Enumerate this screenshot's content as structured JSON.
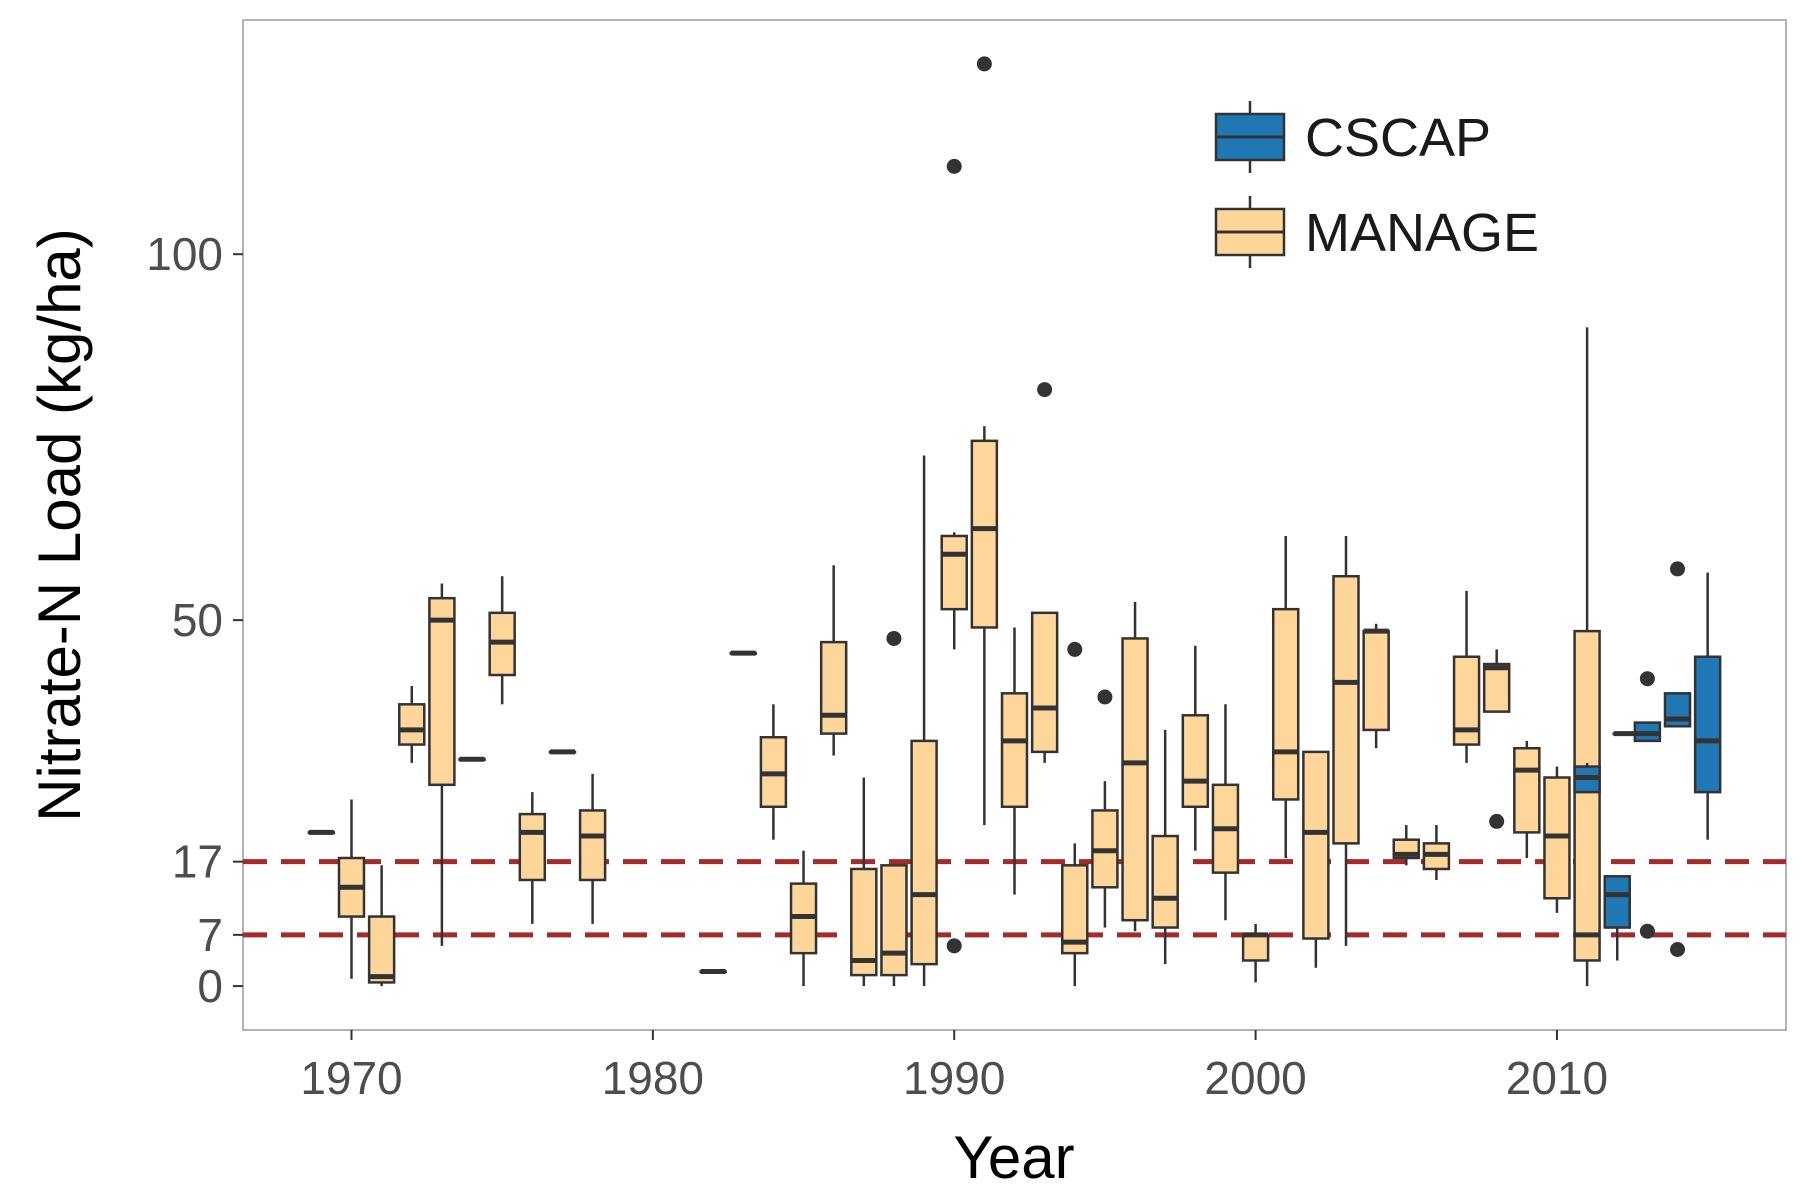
{
  "chart_data": {
    "type": "boxplot",
    "xlabel": "Year",
    "ylabel": "Nitrate-N Load (kg/ha)",
    "xlim": [
      1966.4,
      2017.6
    ],
    "ylim": [
      -6,
      132
    ],
    "x_ticks": [
      1970,
      1980,
      1990,
      2000,
      2010
    ],
    "y_ticks": [
      0,
      7,
      17,
      50,
      100
    ],
    "reference_lines": [
      {
        "y": 17,
        "color": "#a52a2a",
        "style": "dashed"
      },
      {
        "y": 7,
        "color": "#a52a2a",
        "style": "dashed"
      }
    ],
    "grid": false,
    "legend": {
      "position": "top-right",
      "entries": [
        {
          "name": "CSCAP",
          "color": "#1f77b4"
        },
        {
          "name": "MANAGE",
          "color": "#ffd699"
        }
      ]
    },
    "series": [
      {
        "name": "MANAGE",
        "color": "#ffd699",
        "boxes": [
          {
            "x": 1969,
            "min": 21,
            "q1": 21,
            "median": 21,
            "q3": 21,
            "max": 21,
            "outliers": []
          },
          {
            "x": 1970,
            "min": 1,
            "q1": 9.5,
            "median": 13.5,
            "q3": 17.5,
            "max": 25.5,
            "outliers": []
          },
          {
            "x": 1971,
            "min": 0,
            "q1": 0.5,
            "median": 1.3,
            "q3": 9.5,
            "max": 16.5,
            "outliers": []
          },
          {
            "x": 1972,
            "min": 30.5,
            "q1": 33,
            "median": 35,
            "q3": 38.5,
            "max": 41,
            "outliers": []
          },
          {
            "x": 1973,
            "min": 5.5,
            "q1": 27.5,
            "median": 50,
            "q3": 53,
            "max": 55,
            "outliers": []
          },
          {
            "x": 1974,
            "min": 31,
            "q1": 31,
            "median": 31,
            "q3": 31,
            "max": 31,
            "outliers": []
          },
          {
            "x": 1975,
            "min": 38.5,
            "q1": 42.5,
            "median": 47,
            "q3": 51,
            "max": 56,
            "outliers": []
          },
          {
            "x": 1976,
            "min": 8.5,
            "q1": 14.5,
            "median": 21,
            "q3": 23.5,
            "max": 26.5,
            "outliers": []
          },
          {
            "x": 1977,
            "min": 32,
            "q1": 32,
            "median": 32,
            "q3": 32,
            "max": 32,
            "outliers": []
          },
          {
            "x": 1978,
            "min": 8.5,
            "q1": 14.5,
            "median": 20.5,
            "q3": 24,
            "max": 29,
            "outliers": []
          },
          {
            "x": 1982,
            "min": 2,
            "q1": 2,
            "median": 2,
            "q3": 2,
            "max": 2,
            "outliers": []
          },
          {
            "x": 1983,
            "min": 45.5,
            "q1": 45.5,
            "median": 45.5,
            "q3": 45.5,
            "max": 45.5,
            "outliers": []
          },
          {
            "x": 1984,
            "min": 20,
            "q1": 24.5,
            "median": 29,
            "q3": 34,
            "max": 38.5,
            "outliers": []
          },
          {
            "x": 1985,
            "min": 0,
            "q1": 4.5,
            "median": 9.5,
            "q3": 14,
            "max": 18.5,
            "outliers": []
          },
          {
            "x": 1986,
            "min": 31.5,
            "q1": 34.5,
            "median": 37,
            "q3": 47,
            "max": 57.5,
            "outliers": []
          },
          {
            "x": 1987,
            "min": 0,
            "q1": 1.5,
            "median": 3.5,
            "q3": 16,
            "max": 28.5,
            "outliers": []
          },
          {
            "x": 1988,
            "min": 0,
            "q1": 1.5,
            "median": 4.5,
            "q3": 16.5,
            "max": 16.5,
            "outliers": [
              47.5
            ]
          },
          {
            "x": 1989,
            "min": 0,
            "q1": 3,
            "median": 12.5,
            "q3": 33.5,
            "max": 72.5,
            "outliers": []
          },
          {
            "x": 1990,
            "min": 46,
            "q1": 51.5,
            "median": 59,
            "q3": 61.5,
            "max": 62,
            "outliers": [
              5.5,
              112
            ]
          },
          {
            "x": 1991,
            "min": 22,
            "q1": 49,
            "median": 62.5,
            "q3": 74.5,
            "max": 76.5,
            "outliers": [
              126
            ]
          },
          {
            "x": 1992,
            "min": 12.5,
            "q1": 24.5,
            "median": 33.5,
            "q3": 40,
            "max": 49,
            "outliers": []
          },
          {
            "x": 1993,
            "min": 30.5,
            "q1": 32,
            "median": 38,
            "q3": 51,
            "max": 51,
            "outliers": [
              81.5
            ]
          },
          {
            "x": 1994,
            "min": 0,
            "q1": 4.5,
            "median": 6,
            "q3": 16.5,
            "max": 19.5,
            "outliers": [
              46
            ]
          },
          {
            "x": 1995,
            "min": 8,
            "q1": 13.5,
            "median": 18.5,
            "q3": 24,
            "max": 28,
            "outliers": [
              39.5
            ]
          },
          {
            "x": 1996,
            "min": 7.5,
            "q1": 9,
            "median": 30.5,
            "q3": 47.5,
            "max": 52.5,
            "outliers": []
          },
          {
            "x": 1997,
            "min": 3,
            "q1": 8,
            "median": 12,
            "q3": 20.5,
            "max": 35,
            "outliers": []
          },
          {
            "x": 1998,
            "min": 18.5,
            "q1": 24.5,
            "median": 28,
            "q3": 37,
            "max": 46.5,
            "outliers": []
          },
          {
            "x": 1999,
            "min": 9,
            "q1": 15.5,
            "median": 21.5,
            "q3": 27.5,
            "max": 38.5,
            "outliers": []
          },
          {
            "x": 2000,
            "min": 0.5,
            "q1": 3.5,
            "median": 7,
            "q3": 7,
            "max": 8.5,
            "outliers": []
          },
          {
            "x": 2001,
            "min": 17.5,
            "q1": 25.5,
            "median": 32,
            "q3": 51.5,
            "max": 61.5,
            "outliers": []
          },
          {
            "x": 2002,
            "min": 2.5,
            "q1": 6.5,
            "median": 21,
            "q3": 32,
            "max": 32,
            "outliers": []
          },
          {
            "x": 2003,
            "min": 5.5,
            "q1": 19.5,
            "median": 41.5,
            "q3": 56,
            "max": 61.5,
            "outliers": []
          },
          {
            "x": 2004,
            "min": 32.5,
            "q1": 35,
            "median": 48.5,
            "q3": 48.5,
            "max": 49.5,
            "outliers": []
          },
          {
            "x": 2005,
            "min": 16.5,
            "q1": 17.5,
            "median": 18,
            "q3": 20,
            "max": 22,
            "outliers": []
          },
          {
            "x": 2006,
            "min": 14.5,
            "q1": 16,
            "median": 18,
            "q3": 19.5,
            "max": 22,
            "outliers": []
          },
          {
            "x": 2007,
            "min": 30.5,
            "q1": 33,
            "median": 35,
            "q3": 45,
            "max": 54,
            "outliers": []
          },
          {
            "x": 2008,
            "min": 37.5,
            "q1": 37.5,
            "median": 43.5,
            "q3": 44,
            "max": 46,
            "outliers": [
              22.5
            ]
          },
          {
            "x": 2009,
            "min": 17.5,
            "q1": 21,
            "median": 29.5,
            "q3": 32.5,
            "max": 33.5,
            "outliers": []
          },
          {
            "x": 2010,
            "min": 10,
            "q1": 12,
            "median": 20.5,
            "q3": 28.5,
            "max": 30,
            "outliers": []
          },
          {
            "x": 2011,
            "min": 0,
            "q1": 3.5,
            "median": 7,
            "q3": 48.5,
            "max": 90,
            "outliers": []
          }
        ]
      },
      {
        "name": "CSCAP",
        "color": "#1f77b4",
        "boxes": [
          {
            "x": 2011,
            "min": 26.5,
            "q1": 26.5,
            "median": 28.5,
            "q3": 30,
            "max": 30.5,
            "outliers": []
          },
          {
            "x": 2012,
            "min": 3.5,
            "q1": 8,
            "median": 12.5,
            "q3": 15,
            "max": 15,
            "outliers": []
          },
          {
            "x": 2012.3,
            "min": 34.5,
            "q1": 34.5,
            "median": 34.5,
            "q3": 34.5,
            "max": 34.5,
            "outliers": []
          },
          {
            "x": 2013,
            "min": 33.5,
            "q1": 33.5,
            "median": 34.5,
            "q3": 36,
            "max": 36,
            "outliers": [
              7.5,
              42
            ]
          },
          {
            "x": 2014,
            "min": 35.5,
            "q1": 35.5,
            "median": 36.5,
            "q3": 40,
            "max": 40,
            "outliers": [
              5,
              57
            ]
          },
          {
            "x": 2015,
            "min": 20,
            "q1": 26.5,
            "median": 33.5,
            "q3": 45,
            "max": 56.5,
            "outliers": []
          }
        ]
      }
    ]
  }
}
